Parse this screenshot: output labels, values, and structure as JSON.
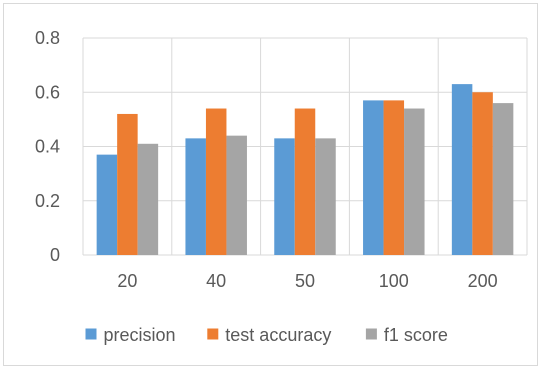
{
  "chart_data": {
    "type": "bar",
    "title": "",
    "xlabel": "",
    "ylabel": "",
    "categories": [
      "20",
      "40",
      "50",
      "100",
      "200"
    ],
    "series": [
      {
        "name": "precision",
        "color": "#5b9bd5",
        "values": [
          0.37,
          0.43,
          0.43,
          0.57,
          0.63
        ]
      },
      {
        "name": "test accuracy",
        "color": "#ed7d31",
        "values": [
          0.52,
          0.54,
          0.54,
          0.57,
          0.6
        ]
      },
      {
        "name": "f1 score",
        "color": "#a5a5a5",
        "values": [
          0.41,
          0.44,
          0.43,
          0.54,
          0.56
        ]
      }
    ],
    "ylim": [
      0,
      0.8
    ],
    "yticks": [
      "0",
      "0.2",
      "0.4",
      "0.6",
      "0.8"
    ],
    "grid": true,
    "legend_position": "bottom"
  }
}
